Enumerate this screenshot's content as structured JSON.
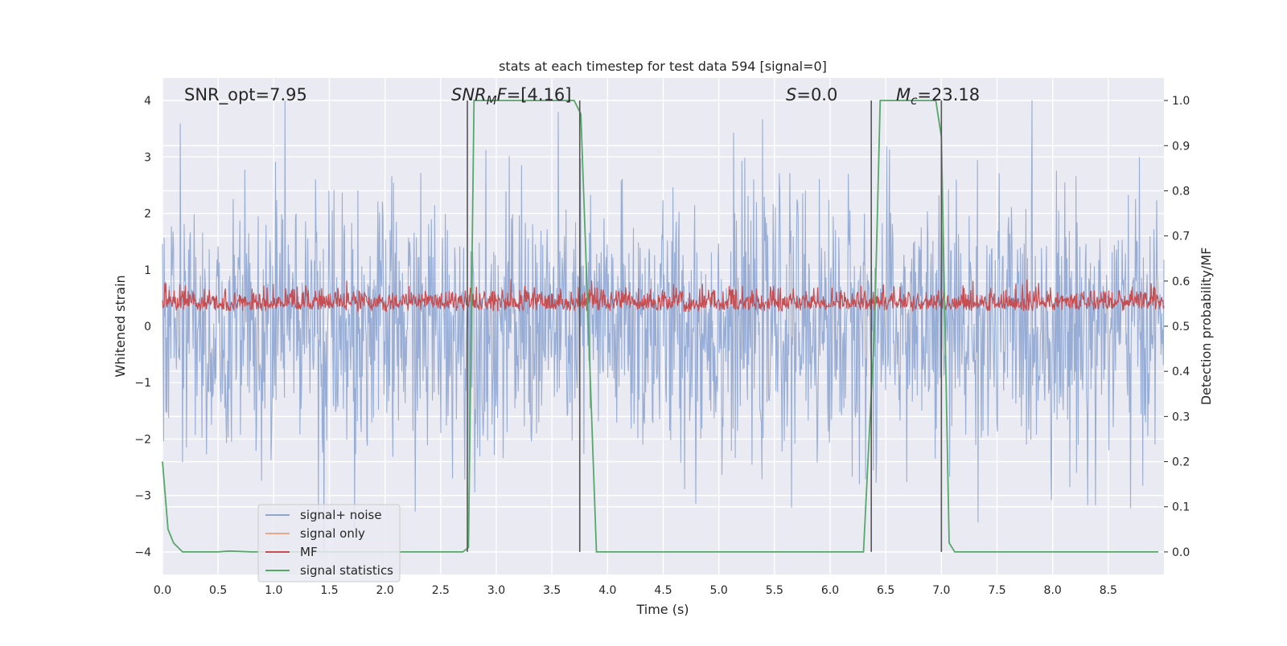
{
  "chart_data": {
    "type": "line",
    "title": "stats at each timestep for test data 594 [signal=0]",
    "xlabel": "Time (s)",
    "ylabel": "Whitened strain",
    "y2label": "Detection probability/MF",
    "xlim": [
      0.0,
      9.0
    ],
    "ylim": [
      -4.4,
      4.4
    ],
    "y2lim": [
      -0.05,
      1.05
    ],
    "x_ticks": [
      "0.0",
      "0.5",
      "1.0",
      "1.5",
      "2.0",
      "2.5",
      "3.0",
      "3.5",
      "4.0",
      "4.5",
      "5.0",
      "5.5",
      "6.0",
      "6.5",
      "7.0",
      "7.5",
      "8.0",
      "8.5"
    ],
    "y_ticks": [
      "−4",
      "−3",
      "−2",
      "−1",
      "0",
      "1",
      "2",
      "3",
      "4"
    ],
    "y2_ticks": [
      "0.0",
      "0.1",
      "0.2",
      "0.3",
      "0.4",
      "0.5",
      "0.6",
      "0.7",
      "0.8",
      "0.9",
      "1.0"
    ],
    "grid": true,
    "annotations": [
      {
        "key": "snr_opt",
        "text": "SNR_opt=7.95"
      },
      {
        "key": "snr_mf",
        "text": "SNR_MF=[4.16]"
      },
      {
        "key": "s",
        "text": "S=0.0"
      },
      {
        "key": "mc",
        "text": "M_c=23.18"
      }
    ],
    "legend": {
      "placement": "lower-left",
      "entries": [
        {
          "label": "signal+ noise",
          "color": "#8fa6d1"
        },
        {
          "label": "signal only",
          "color": "#e8a98a"
        },
        {
          "label": "MF",
          "color": "#c44e52"
        },
        {
          "label": "signal statistics",
          "color": "#55a868"
        }
      ]
    },
    "vlines": [
      2.74,
      3.75,
      6.37,
      7.0
    ],
    "series": [
      {
        "name": "signal+ noise",
        "color": "#8fa6d1",
        "style": "noise",
        "x_range": [
          0.0,
          9.0
        ],
        "y_envelope": [
          -4.0,
          4.0
        ]
      },
      {
        "name": "MF",
        "color": "#c44e52",
        "style": "noise",
        "x_range": [
          0.0,
          9.0
        ],
        "y_envelope": [
          0.0,
          0.9
        ]
      },
      {
        "name": "signal statistics",
        "color": "#55a868",
        "axis": "right",
        "x": [
          0.0,
          0.05,
          0.1,
          0.18,
          0.5,
          0.6,
          0.8,
          2.6,
          2.7,
          2.75,
          2.8,
          3.7,
          3.76,
          3.9,
          3.95,
          6.3,
          6.4,
          6.45,
          6.95,
          7.0,
          7.07,
          7.12,
          8.95
        ],
        "values": [
          0.2,
          0.05,
          0.02,
          0.0,
          0.0,
          0.002,
          0.0,
          0.0,
          0.0,
          0.01,
          1.0,
          1.0,
          0.97,
          0.0,
          0.0,
          0.0,
          0.5,
          1.0,
          1.0,
          0.92,
          0.02,
          0.0,
          0.0
        ]
      }
    ]
  }
}
